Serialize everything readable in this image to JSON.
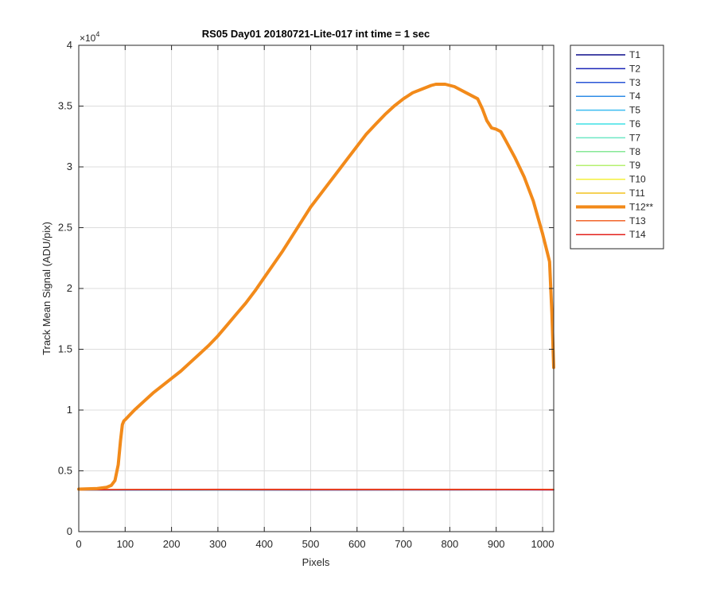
{
  "chart_data": {
    "type": "line",
    "title": "RS05 Day01 20180721-Lite-017 int time = 1 sec",
    "xlabel": "Pixels",
    "ylabel": "Track Mean Signal (ADU/pix)",
    "y_exponent_label": "×10",
    "y_exponent": "4",
    "xlim": [
      0,
      1024
    ],
    "ylim": [
      0,
      4
    ],
    "x_ticks": [
      0,
      100,
      200,
      300,
      400,
      500,
      600,
      700,
      800,
      900,
      1000
    ],
    "y_ticks": [
      0,
      0.5,
      1,
      1.5,
      2,
      2.5,
      3,
      3.5,
      4
    ],
    "x_tick_labels": [
      "0",
      "100",
      "200",
      "300",
      "400",
      "500",
      "600",
      "700",
      "800",
      "900",
      "1000"
    ],
    "y_tick_labels": [
      "0",
      "0.5",
      "1",
      "1.5",
      "2",
      "2.5",
      "3",
      "3.5",
      "4"
    ],
    "grid": true,
    "legend_position": "outside-right",
    "series": [
      {
        "name": "T1",
        "color": "#0b0b8c",
        "width": 1.5,
        "x": [
          0,
          1024
        ],
        "y": [
          0.342,
          0.344
        ]
      },
      {
        "name": "T2",
        "color": "#1a25b8",
        "width": 1.5,
        "x": [
          0,
          1024
        ],
        "y": [
          0.343,
          0.344
        ]
      },
      {
        "name": "T3",
        "color": "#2a55d6",
        "width": 1.5,
        "x": [
          0,
          1024
        ],
        "y": [
          0.343,
          0.345
        ]
      },
      {
        "name": "T4",
        "color": "#2f8ce6",
        "width": 1.5,
        "x": [
          0,
          1024
        ],
        "y": [
          0.344,
          0.345
        ]
      },
      {
        "name": "T5",
        "color": "#3bbcf0",
        "width": 1.5,
        "x": [
          0,
          1024
        ],
        "y": [
          0.344,
          0.346
        ]
      },
      {
        "name": "T6",
        "color": "#3fe0e6",
        "width": 1.5,
        "x": [
          0,
          1024
        ],
        "y": [
          0.344,
          0.346
        ]
      },
      {
        "name": "T7",
        "color": "#6ee8c4",
        "width": 1.5,
        "x": [
          0,
          1024
        ],
        "y": [
          0.345,
          0.346
        ]
      },
      {
        "name": "T8",
        "color": "#86e896",
        "width": 1.5,
        "x": [
          0,
          1024
        ],
        "y": [
          0.345,
          0.347
        ]
      },
      {
        "name": "T9",
        "color": "#b6f070",
        "width": 1.5,
        "x": [
          0,
          1024
        ],
        "y": [
          0.345,
          0.347
        ]
      },
      {
        "name": "T10",
        "color": "#f4f03a",
        "width": 1.5,
        "x": [
          0,
          1024
        ],
        "y": [
          0.345,
          0.347
        ]
      },
      {
        "name": "T11",
        "color": "#f2c21e",
        "width": 1.5,
        "x": [
          0,
          1024
        ],
        "y": [
          0.346,
          0.347
        ]
      },
      {
        "name": "T12**",
        "color": "#f28a1a",
        "width": 4,
        "x": [
          0,
          40,
          60,
          70,
          78,
          85,
          90,
          94,
          97,
          100,
          110,
          120,
          140,
          160,
          180,
          200,
          220,
          240,
          260,
          280,
          300,
          320,
          340,
          360,
          380,
          400,
          420,
          440,
          460,
          480,
          500,
          520,
          540,
          560,
          580,
          600,
          620,
          640,
          660,
          680,
          700,
          720,
          740,
          760,
          770,
          780,
          790,
          800,
          810,
          820,
          840,
          860,
          870,
          880,
          890,
          900,
          910,
          920,
          940,
          960,
          980,
          1000,
          1010,
          1015,
          1020,
          1024
        ],
        "y": [
          0.35,
          0.355,
          0.365,
          0.38,
          0.42,
          0.55,
          0.75,
          0.88,
          0.91,
          0.92,
          0.96,
          1.0,
          1.07,
          1.14,
          1.2,
          1.26,
          1.32,
          1.39,
          1.46,
          1.53,
          1.61,
          1.7,
          1.79,
          1.88,
          1.98,
          2.09,
          2.2,
          2.31,
          2.43,
          2.55,
          2.67,
          2.77,
          2.87,
          2.97,
          3.07,
          3.17,
          3.27,
          3.35,
          3.43,
          3.5,
          3.56,
          3.61,
          3.64,
          3.67,
          3.68,
          3.68,
          3.68,
          3.67,
          3.66,
          3.64,
          3.6,
          3.56,
          3.48,
          3.38,
          3.32,
          3.31,
          3.29,
          3.22,
          3.08,
          2.92,
          2.72,
          2.45,
          2.3,
          2.22,
          1.8,
          1.35
        ]
      },
      {
        "name": "T13",
        "color": "#f2642a",
        "width": 1.5,
        "x": [
          0,
          1024
        ],
        "y": [
          0.346,
          0.347
        ]
      },
      {
        "name": "T14",
        "color": "#e3201c",
        "width": 1.5,
        "x": [
          0,
          100,
          300,
          500,
          700,
          900,
          1024
        ],
        "y": [
          0.343,
          0.345,
          0.347,
          0.347,
          0.347,
          0.346,
          0.344
        ]
      }
    ]
  }
}
